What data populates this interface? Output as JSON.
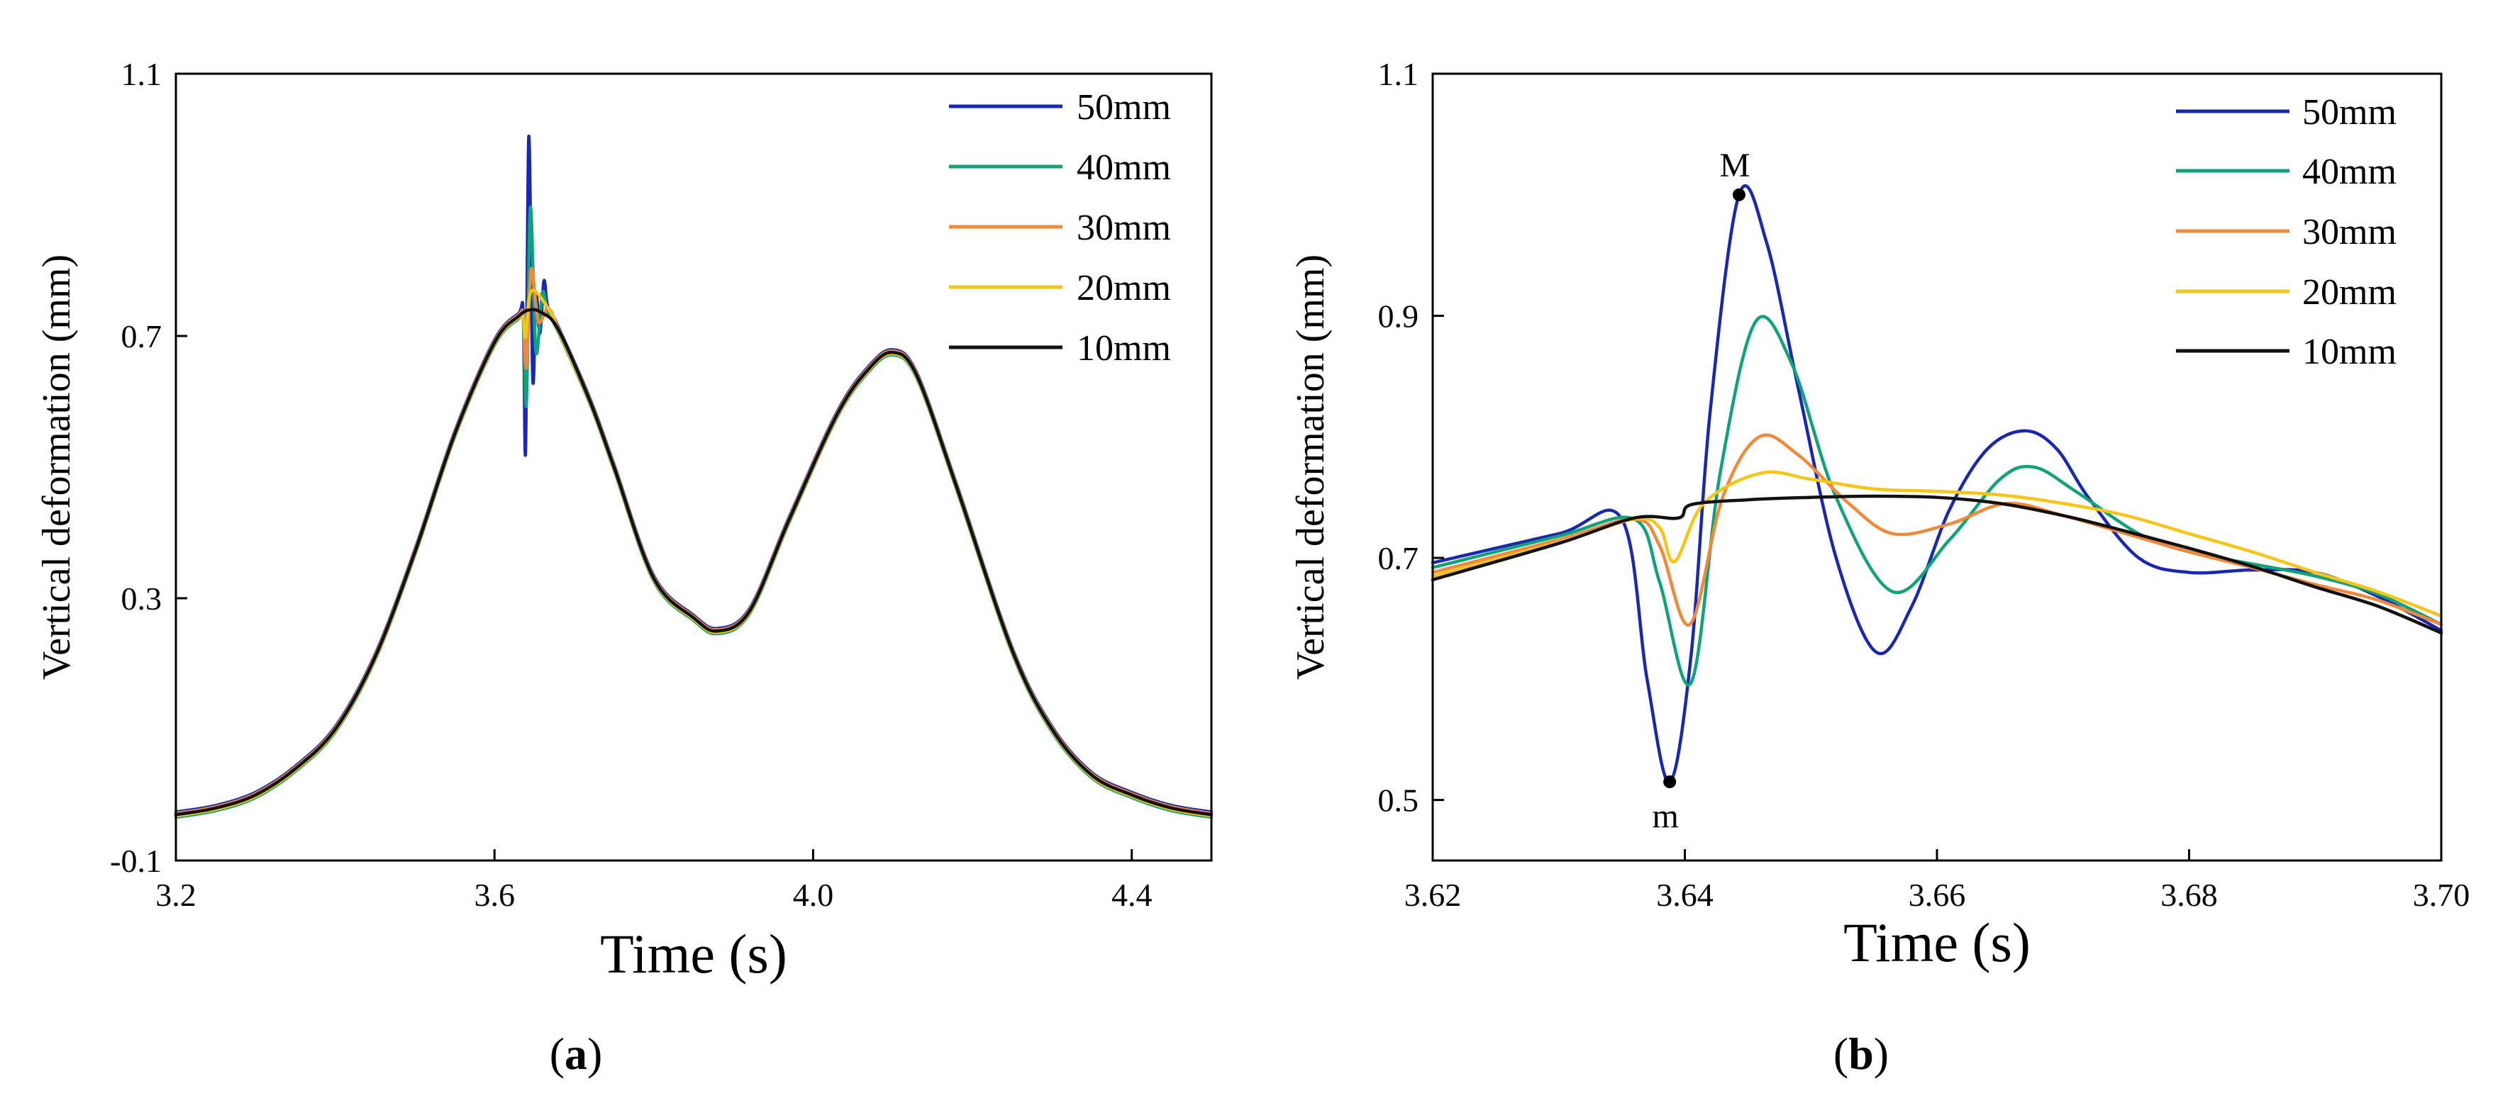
{
  "colors": {
    "50mm": "#1a28b0",
    "40mm": "#12a27a",
    "30mm": "#f08a3a",
    "20mm": "#f5c518",
    "10mm": "#111111",
    "axis": "#000000",
    "marker": "#000000"
  },
  "chart_data": [
    {
      "type": "line",
      "panel_label": {
        "open": "(",
        "letter": "a",
        "close": ")"
      },
      "xlabel": "Time (s)",
      "ylabel": "Vertical deformation (mm)",
      "xlim": [
        3.2,
        4.5
      ],
      "ylim": [
        -0.1,
        1.1
      ],
      "xticks": [
        3.2,
        3.6,
        4.0,
        4.4
      ],
      "xtick_labels": [
        "3.2",
        "3.6",
        "4.0",
        "4.4"
      ],
      "yticks": [
        -0.1,
        0.3,
        0.7,
        1.1
      ],
      "ytick_labels": [
        "-0.1",
        "0.3",
        "0.7",
        "1.1"
      ],
      "grid": false,
      "legend_position": "top-right",
      "base_curve": {
        "x": [
          3.2,
          3.25,
          3.3,
          3.35,
          3.4,
          3.45,
          3.5,
          3.55,
          3.6,
          3.63,
          3.645,
          3.66,
          3.68,
          3.72,
          3.75,
          3.8,
          3.85,
          3.88,
          3.92,
          3.97,
          4.03,
          4.07,
          4.1,
          4.13,
          4.18,
          4.25,
          4.3,
          4.35,
          4.4,
          4.45,
          4.5
        ],
        "y": [
          -0.03,
          -0.02,
          0.0,
          0.04,
          0.1,
          0.21,
          0.37,
          0.55,
          0.69,
          0.73,
          0.74,
          0.735,
          0.71,
          0.6,
          0.5,
          0.33,
          0.27,
          0.25,
          0.28,
          0.42,
          0.58,
          0.65,
          0.675,
          0.64,
          0.47,
          0.22,
          0.1,
          0.03,
          0.0,
          -0.02,
          -0.03
        ]
      },
      "series": [
        {
          "name": "50mm",
          "color_key": "50mm",
          "spike": [
            [
              3.636,
              0.73
            ],
            [
              3.639,
              0.52
            ],
            [
              3.643,
              1.0
            ],
            [
              3.648,
              0.63
            ],
            [
              3.652,
              0.76
            ],
            [
              3.657,
              0.7
            ],
            [
              3.662,
              0.78
            ],
            [
              3.667,
              0.74
            ]
          ]
        },
        {
          "name": "40mm",
          "color_key": "40mm",
          "spike": [
            [
              3.636,
              0.73
            ],
            [
              3.64,
              0.6
            ],
            [
              3.645,
              0.9
            ],
            [
              3.652,
              0.68
            ],
            [
              3.66,
              0.77
            ],
            [
              3.667,
              0.74
            ]
          ]
        },
        {
          "name": "30mm",
          "color_key": "30mm",
          "spike": [
            [
              3.636,
              0.73
            ],
            [
              3.64,
              0.65
            ],
            [
              3.646,
              0.8
            ],
            [
              3.655,
              0.72
            ],
            [
              3.667,
              0.74
            ]
          ]
        },
        {
          "name": "20mm",
          "color_key": "20mm",
          "spike": [
            [
              3.636,
              0.73
            ],
            [
              3.639,
              0.7
            ],
            [
              3.646,
              0.77
            ],
            [
              3.667,
              0.745
            ]
          ]
        },
        {
          "name": "10mm",
          "color_key": "10mm",
          "spike": []
        }
      ]
    },
    {
      "type": "line",
      "panel_label": {
        "open": "(",
        "letter": "b",
        "close": ")"
      },
      "xlabel": "Time (s)",
      "ylabel": "Vertical deformation (mm)",
      "xlim": [
        3.62,
        3.7
      ],
      "ylim": [
        0.45,
        1.1
      ],
      "xticks": [
        3.62,
        3.64,
        3.66,
        3.68,
        3.7
      ],
      "xtick_labels": [
        "3.62",
        "3.64",
        "3.66",
        "3.68",
        "3.70"
      ],
      "yticks": [
        0.5,
        0.7,
        0.9,
        1.1
      ],
      "ytick_labels": [
        "0.5",
        "0.7",
        "0.9",
        "1.1"
      ],
      "grid": false,
      "legend_position": "top-right",
      "annotations": [
        {
          "label": "M",
          "x": 3.6443,
          "y": 1.0,
          "label_side": "above"
        },
        {
          "label": "m",
          "x": 3.6388,
          "y": 0.515,
          "label_side": "below"
        }
      ],
      "series": [
        {
          "name": "50mm",
          "color_key": "50mm",
          "x": [
            3.62,
            3.63,
            3.635,
            3.637,
            3.6388,
            3.6405,
            3.642,
            3.6443,
            3.6465,
            3.649,
            3.652,
            3.6552,
            3.658,
            3.661,
            3.664,
            3.667,
            3.6695,
            3.672,
            3.676,
            3.68,
            3.685,
            3.69,
            3.695,
            3.7
          ],
          "y": [
            0.696,
            0.72,
            0.732,
            0.6,
            0.515,
            0.62,
            0.82,
            1.0,
            0.96,
            0.84,
            0.7,
            0.622,
            0.66,
            0.74,
            0.79,
            0.805,
            0.79,
            0.75,
            0.7,
            0.688,
            0.69,
            0.688,
            0.668,
            0.64
          ]
        },
        {
          "name": "40mm",
          "color_key": "40mm",
          "x": [
            3.62,
            3.63,
            3.636,
            3.638,
            3.6405,
            3.6428,
            3.6456,
            3.6485,
            3.652,
            3.6565,
            3.661,
            3.665,
            3.6677,
            3.671,
            3.676,
            3.68,
            3.685,
            3.69,
            3.695,
            3.7
          ],
          "y": [
            0.692,
            0.718,
            0.732,
            0.68,
            0.597,
            0.77,
            0.895,
            0.86,
            0.75,
            0.672,
            0.715,
            0.765,
            0.775,
            0.755,
            0.72,
            0.705,
            0.695,
            0.685,
            0.67,
            0.645
          ]
        },
        {
          "name": "30mm",
          "color_key": "30mm",
          "x": [
            3.62,
            3.63,
            3.636,
            3.638,
            3.6404,
            3.643,
            3.6459,
            3.649,
            3.653,
            3.6565,
            3.661,
            3.6655,
            3.67,
            3.675,
            3.68,
            3.685,
            3.69,
            3.695,
            3.7
          ],
          "y": [
            0.688,
            0.715,
            0.732,
            0.71,
            0.645,
            0.75,
            0.8,
            0.785,
            0.745,
            0.72,
            0.728,
            0.745,
            0.735,
            0.72,
            0.705,
            0.692,
            0.678,
            0.665,
            0.645
          ]
        },
        {
          "name": "20mm",
          "color_key": "20mm",
          "x": [
            3.62,
            3.63,
            3.636,
            3.638,
            3.6392,
            3.6415,
            3.646,
            3.65,
            3.655,
            3.66,
            3.665,
            3.67,
            3.675,
            3.68,
            3.685,
            3.69,
            3.695,
            3.7
          ],
          "y": [
            0.685,
            0.713,
            0.732,
            0.725,
            0.697,
            0.745,
            0.77,
            0.765,
            0.757,
            0.755,
            0.752,
            0.745,
            0.735,
            0.72,
            0.705,
            0.688,
            0.672,
            0.652
          ]
        },
        {
          "name": "10mm",
          "color_key": "10mm",
          "x": [
            3.62,
            3.63,
            3.636,
            3.6395,
            3.6405,
            3.645,
            3.65,
            3.655,
            3.66,
            3.665,
            3.67,
            3.675,
            3.68,
            3.685,
            3.69,
            3.695,
            3.7
          ],
          "y": [
            0.682,
            0.712,
            0.733,
            0.733,
            0.744,
            0.748,
            0.75,
            0.751,
            0.75,
            0.745,
            0.735,
            0.722,
            0.708,
            0.693,
            0.676,
            0.66,
            0.638
          ]
        }
      ]
    }
  ]
}
